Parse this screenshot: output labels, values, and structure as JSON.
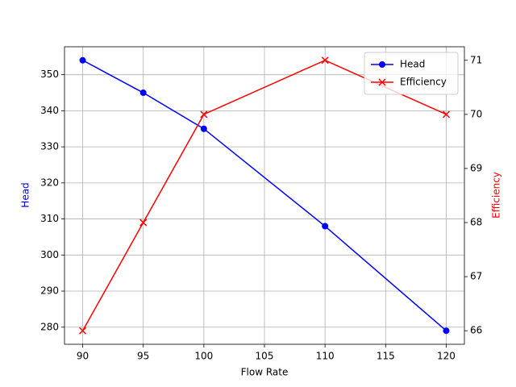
{
  "chart_data": {
    "type": "line",
    "xlabel": "Flow Rate",
    "ylabel": "Head",
    "y2label": "Efficiency",
    "x": [
      90,
      95,
      100,
      110,
      120
    ],
    "series": [
      {
        "name": "Head",
        "color": "#0000ff",
        "marker": "o",
        "values": [
          354,
          345,
          335,
          308,
          279
        ]
      },
      {
        "name": "Efficiency",
        "color": "#ff0000",
        "marker": "x",
        "axis": "y2",
        "values": [
          66,
          68,
          70,
          71,
          70
        ]
      }
    ],
    "xlim": [
      88.5,
      121.5
    ],
    "xticks": [
      90,
      95,
      100,
      105,
      110,
      115,
      120
    ],
    "ylim": [
      275.25,
      357.75
    ],
    "yticks": [
      280,
      290,
      300,
      310,
      320,
      330,
      340,
      350
    ],
    "y2lim": [
      65.75,
      71.25
    ],
    "y2ticks": [
      66,
      67,
      68,
      69,
      70,
      71
    ],
    "grid": true,
    "legend": "upper right"
  }
}
